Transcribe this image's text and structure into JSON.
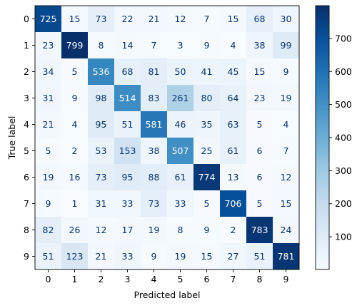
{
  "chart_data": {
    "type": "heatmap",
    "title": "",
    "xlabel": "Predicted label",
    "ylabel": "True label",
    "x_categories": [
      "0",
      "1",
      "2",
      "3",
      "4",
      "5",
      "6",
      "7",
      "8",
      "9"
    ],
    "y_categories": [
      "0",
      "1",
      "2",
      "3",
      "4",
      "5",
      "6",
      "7",
      "8",
      "9"
    ],
    "matrix": [
      [
        725,
        15,
        73,
        22,
        21,
        12,
        7,
        15,
        68,
        30
      ],
      [
        23,
        799,
        8,
        14,
        7,
        3,
        9,
        4,
        38,
        99
      ],
      [
        34,
        5,
        536,
        68,
        81,
        50,
        41,
        45,
        15,
        9
      ],
      [
        31,
        9,
        98,
        514,
        83,
        261,
        80,
        64,
        23,
        19
      ],
      [
        21,
        4,
        95,
        51,
        581,
        46,
        35,
        63,
        5,
        4
      ],
      [
        5,
        2,
        53,
        153,
        38,
        507,
        25,
        61,
        6,
        7
      ],
      [
        19,
        16,
        73,
        95,
        88,
        61,
        774,
        13,
        6,
        12
      ],
      [
        9,
        1,
        31,
        33,
        73,
        33,
        5,
        706,
        5,
        15
      ],
      [
        82,
        26,
        12,
        17,
        19,
        8,
        9,
        2,
        783,
        24
      ],
      [
        51,
        123,
        21,
        33,
        9,
        19,
        15,
        27,
        51,
        781
      ]
    ],
    "colormap": "Blues",
    "colors": {
      "low": "#f7fbff",
      "high": "#08306b"
    },
    "colorbar": {
      "ticks": [
        100,
        200,
        300,
        400,
        500,
        600,
        700
      ],
      "labels": [
        "100",
        "200",
        "300",
        "400",
        "500",
        "600",
        "700"
      ]
    },
    "grid": false
  }
}
